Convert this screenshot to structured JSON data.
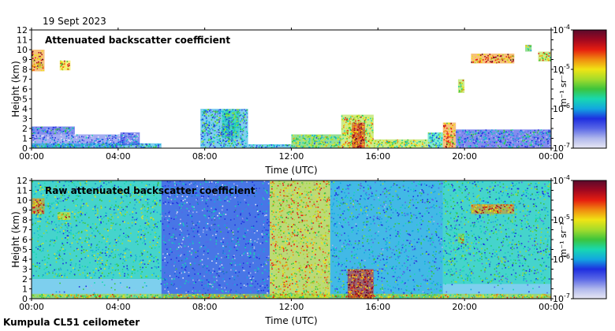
{
  "date": "19 Sept 2023",
  "footer": "Kumpula CL51 ceilometer",
  "colors": {
    "scale": [
      "#e8e8f4",
      "#b0b8ec",
      "#5866e6",
      "#1e2ee0",
      "#12a7e0",
      "#18d8b0",
      "#3cc43c",
      "#a4dc2c",
      "#f0e414",
      "#f08c10",
      "#e61e10",
      "#a00820",
      "#5a0a2c"
    ]
  },
  "chart_data": [
    {
      "type": "heatmap",
      "title": "Attenuated backscatter coefficient",
      "xlabel": "Time (UTC)",
      "ylabel": "Height (km)",
      "x_ticks": [
        "00:00",
        "04:00",
        "08:00",
        "12:00",
        "16:00",
        "20:00",
        "00:00"
      ],
      "y_ticks": [
        "0",
        "1",
        "2",
        "3",
        "4",
        "5",
        "6",
        "7",
        "8",
        "9",
        "10",
        "11",
        "12"
      ],
      "xlim": [
        "00:00",
        "24:00"
      ],
      "ylim": [
        0,
        12
      ],
      "colorbar": {
        "label": "m⁻¹ sr⁻¹",
        "ticks": [
          {
            "base": "10",
            "exp": "-7",
            "value": 1e-07
          },
          {
            "base": "10",
            "exp": "-6",
            "value": 1e-06
          },
          {
            "base": "10",
            "exp": "-5",
            "value": 1e-05
          },
          {
            "base": "10",
            "exp": "-4",
            "value": 0.0001
          }
        ],
        "scale": "log"
      },
      "features": [
        {
          "t0": 0.0,
          "t1": 4.3,
          "h0": 0.0,
          "h1": 1.4,
          "level": 0.2
        },
        {
          "t0": 0.0,
          "t1": 2.0,
          "h0": 1.4,
          "h1": 2.2,
          "level": 0.28
        },
        {
          "t0": 0.0,
          "t1": 6.0,
          "h0": 0.0,
          "h1": 0.5,
          "level": 0.32
        },
        {
          "t0": 4.1,
          "t1": 5.0,
          "h0": 0.3,
          "h1": 1.6,
          "level": 0.22
        },
        {
          "t0": 7.8,
          "t1": 10.0,
          "h0": 0.0,
          "h1": 4.0,
          "level": 0.35
        },
        {
          "t0": 8.8,
          "t1": 9.6,
          "h0": 1.0,
          "h1": 3.8,
          "level": 0.38
        },
        {
          "t0": 10.0,
          "t1": 12.0,
          "h0": 0.0,
          "h1": 0.4,
          "level": 0.3
        },
        {
          "t0": 12.0,
          "t1": 14.3,
          "h0": 0.0,
          "h1": 1.4,
          "level": 0.5
        },
        {
          "t0": 14.3,
          "t1": 15.8,
          "h0": 0.0,
          "h1": 3.4,
          "level": 0.62
        },
        {
          "t0": 14.8,
          "t1": 15.4,
          "h0": 0.0,
          "h1": 2.6,
          "level": 0.85
        },
        {
          "t0": 15.8,
          "t1": 18.3,
          "h0": 0.0,
          "h1": 0.9,
          "level": 0.55
        },
        {
          "t0": 18.3,
          "t1": 19.0,
          "h0": 0.0,
          "h1": 1.6,
          "level": 0.4
        },
        {
          "t0": 19.0,
          "t1": 19.6,
          "h0": 0.0,
          "h1": 2.6,
          "level": 0.72
        },
        {
          "t0": 19.6,
          "t1": 24.0,
          "h0": 0.0,
          "h1": 1.9,
          "level": 0.28
        },
        {
          "t0": 0.0,
          "t1": 0.6,
          "h0": 7.8,
          "h1": 10.0,
          "level": 0.78
        },
        {
          "t0": 1.3,
          "t1": 1.8,
          "h0": 7.9,
          "h1": 8.9,
          "level": 0.68
        },
        {
          "t0": 19.7,
          "t1": 20.0,
          "h0": 5.6,
          "h1": 7.0,
          "level": 0.6
        },
        {
          "t0": 20.3,
          "t1": 22.3,
          "h0": 8.6,
          "h1": 9.6,
          "level": 0.78
        },
        {
          "t0": 22.8,
          "t1": 23.1,
          "h0": 9.8,
          "h1": 10.5,
          "level": 0.5
        },
        {
          "t0": 23.4,
          "t1": 24.0,
          "h0": 8.8,
          "h1": 9.8,
          "level": 0.62
        }
      ]
    },
    {
      "type": "heatmap",
      "title": "Raw attenuated backscatter coefficient",
      "xlabel": "Time (UTC)",
      "ylabel": "Height (km)",
      "x_ticks": [
        "00:00",
        "04:00",
        "08:00",
        "12:00",
        "16:00",
        "20:00",
        "00:00"
      ],
      "y_ticks": [
        "0",
        "1",
        "2",
        "3",
        "4",
        "5",
        "6",
        "7",
        "8",
        "9",
        "10",
        "11",
        "12"
      ],
      "xlim": [
        "00:00",
        "24:00"
      ],
      "ylim": [
        0,
        12
      ],
      "colorbar": {
        "label": "m⁻¹ sr⁻¹",
        "ticks": [
          {
            "base": "10",
            "exp": "-7",
            "value": 1e-07
          },
          {
            "base": "10",
            "exp": "-6",
            "value": 1e-06
          },
          {
            "base": "10",
            "exp": "-5",
            "value": 1e-05
          },
          {
            "base": "10",
            "exp": "-4",
            "value": 0.0001
          }
        ],
        "scale": "log"
      },
      "features": [
        {
          "t0": 0.0,
          "t1": 24.0,
          "h0": 0.0,
          "h1": 12.0,
          "level": 0.3
        },
        {
          "t0": 0.0,
          "t1": 6.0,
          "h0": 2.0,
          "h1": 12.0,
          "level": 0.45
        },
        {
          "t0": 6.0,
          "t1": 11.0,
          "h0": 0.0,
          "h1": 12.0,
          "level": 0.24
        },
        {
          "t0": 11.0,
          "t1": 13.8,
          "h0": 0.0,
          "h1": 12.0,
          "level": 0.66
        },
        {
          "t0": 13.8,
          "t1": 19.0,
          "h0": 0.0,
          "h1": 12.0,
          "level": 0.34
        },
        {
          "t0": 19.0,
          "t1": 24.0,
          "h0": 1.5,
          "h1": 12.0,
          "level": 0.4
        },
        {
          "t0": 0.0,
          "t1": 24.0,
          "h0": 0.0,
          "h1": 0.5,
          "level": 0.6
        },
        {
          "t0": 14.6,
          "t1": 15.8,
          "h0": 0.0,
          "h1": 3.0,
          "level": 0.85
        },
        {
          "t0": 0.0,
          "t1": 0.6,
          "h0": 8.6,
          "h1": 10.2,
          "level": 0.74
        },
        {
          "t0": 1.2,
          "t1": 1.8,
          "h0": 8.0,
          "h1": 8.8,
          "level": 0.68
        },
        {
          "t0": 19.7,
          "t1": 20.0,
          "h0": 5.6,
          "h1": 6.6,
          "level": 0.62
        },
        {
          "t0": 20.3,
          "t1": 22.3,
          "h0": 8.6,
          "h1": 9.6,
          "level": 0.76
        }
      ]
    }
  ]
}
